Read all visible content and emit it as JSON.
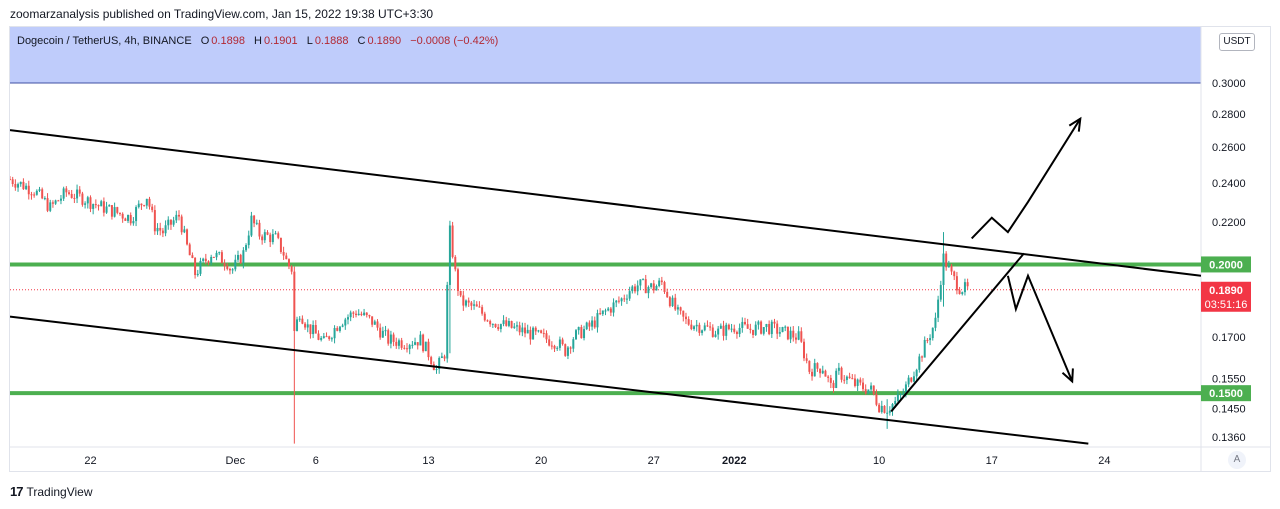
{
  "attribution": "zoomarzanalysis published on TradingView.com, Jan 15, 2022 19:38 UTC+3:30",
  "legend": {
    "symbol": "Dogecoin / TetherUS, 4h, BINANCE",
    "o_label": "O",
    "o_value": "0.1898",
    "h_label": "H",
    "h_value": "0.1901",
    "l_label": "L",
    "l_value": "0.1888",
    "c_label": "C",
    "c_value": "0.1890",
    "change": "−0.0008 (−0.42%)"
  },
  "unit_badge": "USDT",
  "auto_button": "A",
  "footer": {
    "logo": "17",
    "brand": "TradingView"
  },
  "colors": {
    "up": "#26a69a",
    "down": "#ef5350",
    "level": "#4caf50",
    "highlight": "#b8c7fb",
    "price": "#f23645"
  },
  "chart_data": {
    "type": "candlestick",
    "title": "",
    "xlabel": "",
    "ylabel": "",
    "ylim": [
      0.133,
      0.34
    ],
    "y_scale": "log",
    "x_range": [
      "2021-11-17T00:00",
      "2022-01-30T00:00"
    ],
    "y_ticks": [
      "0.1360",
      "0.1450",
      "0.1550",
      "0.1700",
      "0.1890",
      "0.2000",
      "0.2200",
      "0.2400",
      "0.2600",
      "0.2800",
      "0.3000"
    ],
    "x_ticks": [
      {
        "label": "22",
        "date": "2021-11-22"
      },
      {
        "label": "Dec",
        "date": "2021-12-01"
      },
      {
        "label": "6",
        "date": "2021-12-06"
      },
      {
        "label": "13",
        "date": "2021-12-13"
      },
      {
        "label": "20",
        "date": "2021-12-20"
      },
      {
        "label": "27",
        "date": "2021-12-27"
      },
      {
        "label": "2022",
        "date": "2022-01-01",
        "bold": true
      },
      {
        "label": "10",
        "date": "2022-01-10"
      },
      {
        "label": "17",
        "date": "2022-01-17"
      },
      {
        "label": "24",
        "date": "2022-01-24"
      }
    ],
    "price_path": [
      [
        "2021-11-17T00:00",
        0.242
      ],
      [
        "2021-11-18T12:00",
        0.236
      ],
      [
        "2021-11-19T12:00",
        0.227
      ],
      [
        "2021-11-20T12:00",
        0.235
      ],
      [
        "2021-11-21T12:00",
        0.232
      ],
      [
        "2021-11-22T12:00",
        0.228
      ],
      [
        "2021-11-23T12:00",
        0.225
      ],
      [
        "2021-11-24T12:00",
        0.222
      ],
      [
        "2021-11-25T12:00",
        0.233
      ],
      [
        "2021-11-26T00:00",
        0.218
      ],
      [
        "2021-11-26T12:00",
        0.215
      ],
      [
        "2021-11-27T12:00",
        0.223
      ],
      [
        "2021-11-28T00:00",
        0.208
      ],
      [
        "2021-11-28T12:00",
        0.196
      ],
      [
        "2021-11-29T12:00",
        0.205
      ],
      [
        "2021-11-30T12:00",
        0.201
      ],
      [
        "2021-11-30T18:00",
        0.197
      ],
      [
        "2021-12-01T12:00",
        0.205
      ],
      [
        "2021-12-02T00:00",
        0.221
      ],
      [
        "2021-12-02T12:00",
        0.214
      ],
      [
        "2021-12-03T12:00",
        0.212
      ],
      [
        "2021-12-04T00:00",
        0.205
      ],
      [
        "2021-12-04T06:00",
        0.2
      ],
      [
        "2021-12-04T12:00",
        0.198
      ],
      [
        "2021-12-04T16:00",
        0.172
      ],
      [
        "2021-12-05T00:00",
        0.18
      ],
      [
        "2021-12-05T12:00",
        0.174
      ],
      [
        "2021-12-06T12:00",
        0.168
      ],
      [
        "2021-12-07T12:00",
        0.176
      ],
      [
        "2021-12-08T12:00",
        0.18
      ],
      [
        "2021-12-09T12:00",
        0.176
      ],
      [
        "2021-12-10T12:00",
        0.169
      ],
      [
        "2021-12-11T12:00",
        0.168
      ],
      [
        "2021-12-12T12:00",
        0.169
      ],
      [
        "2021-12-13T00:00",
        0.164
      ],
      [
        "2021-12-13T12:00",
        0.158
      ],
      [
        "2021-12-14T00:00",
        0.164
      ],
      [
        "2021-12-14T08:00",
        0.215
      ],
      [
        "2021-12-14T16:00",
        0.196
      ],
      [
        "2021-12-15T00:00",
        0.184
      ],
      [
        "2021-12-16T00:00",
        0.181
      ],
      [
        "2021-12-17T00:00",
        0.176
      ],
      [
        "2021-12-18T00:00",
        0.174
      ],
      [
        "2021-12-19T00:00",
        0.172
      ],
      [
        "2021-12-20T00:00",
        0.17
      ],
      [
        "2021-12-21T00:00",
        0.168
      ],
      [
        "2021-12-21T12:00",
        0.165
      ],
      [
        "2021-12-22T00:00",
        0.17
      ],
      [
        "2021-12-23T00:00",
        0.174
      ],
      [
        "2021-12-24T00:00",
        0.18
      ],
      [
        "2021-12-25T00:00",
        0.185
      ],
      [
        "2021-12-25T12:00",
        0.189
      ],
      [
        "2021-12-26T00:00",
        0.191
      ],
      [
        "2021-12-27T00:00",
        0.19
      ],
      [
        "2021-12-27T12:00",
        0.192
      ],
      [
        "2021-12-28T00:00",
        0.185
      ],
      [
        "2021-12-28T12:00",
        0.179
      ],
      [
        "2021-12-29T00:00",
        0.176
      ],
      [
        "2021-12-30T00:00",
        0.174
      ],
      [
        "2021-12-31T00:00",
        0.172
      ],
      [
        "2022-01-01T00:00",
        0.174
      ],
      [
        "2022-01-02T00:00",
        0.173
      ],
      [
        "2022-01-03T00:00",
        0.174
      ],
      [
        "2022-01-04T00:00",
        0.172
      ],
      [
        "2022-01-05T00:00",
        0.17
      ],
      [
        "2022-01-05T16:00",
        0.158
      ],
      [
        "2022-01-06T12:00",
        0.159
      ],
      [
        "2022-01-07T00:00",
        0.152
      ],
      [
        "2022-01-07T12:00",
        0.157
      ],
      [
        "2022-01-08T12:00",
        0.153
      ],
      [
        "2022-01-09T12:00",
        0.151
      ],
      [
        "2022-01-10T00:00",
        0.146
      ],
      [
        "2022-01-10T12:00",
        0.145
      ],
      [
        "2022-01-11T00:00",
        0.147
      ],
      [
        "2022-01-11T12:00",
        0.15
      ],
      [
        "2022-01-12T00:00",
        0.156
      ],
      [
        "2022-01-12T12:00",
        0.162
      ],
      [
        "2022-01-13T00:00",
        0.169
      ],
      [
        "2022-01-13T12:00",
        0.176
      ],
      [
        "2022-01-14T00:00",
        0.203
      ],
      [
        "2022-01-14T12:00",
        0.195
      ],
      [
        "2022-01-15T00:00",
        0.19
      ],
      [
        "2022-01-15T12:00",
        0.189
      ]
    ],
    "spikes": [
      {
        "time": "2021-12-04T16:00",
        "low": 0.134,
        "high": 0.199
      },
      {
        "time": "2021-12-14T08:00",
        "low": 0.164,
        "high": 0.22
      },
      {
        "time": "2022-01-10T12:00",
        "low": 0.1385,
        "high": 0.148
      },
      {
        "time": "2022-01-14T00:00",
        "low": 0.182,
        "high": 0.215
      }
    ],
    "levels": [
      {
        "price": 0.2,
        "label": "0.2000"
      },
      {
        "price": 0.15,
        "label": "0.1500"
      }
    ],
    "last_price": {
      "price": 0.189,
      "label": "0.1890",
      "countdown": "03:51:16"
    },
    "highlight_band": [
      0.3,
      0.34
    ],
    "trendlines": [
      {
        "from": [
          "2021-11-17T00:00",
          0.27
        ],
        "to": [
          "2022-01-30T00:00",
          0.195
        ]
      },
      {
        "from": [
          "2021-11-17T00:00",
          0.178
        ],
        "to": [
          "2022-01-23T00:00",
          0.134
        ]
      },
      {
        "from": [
          "2022-01-10T18:00",
          0.144
        ],
        "to": [
          "2022-01-19T00:00",
          0.205
        ]
      }
    ],
    "projection_bull": [
      [
        "2022-01-15T18:00",
        0.212
      ],
      [
        "2022-01-17T00:00",
        0.222
      ],
      [
        "2022-01-18T00:00",
        0.215
      ],
      [
        "2022-01-19T06:00",
        0.23
      ],
      [
        "2022-01-22T12:00",
        0.277
      ]
    ],
    "projection_bear": [
      [
        "2022-01-18T00:00",
        0.195
      ],
      [
        "2022-01-18T12:00",
        0.181
      ],
      [
        "2022-01-19T06:00",
        0.195
      ],
      [
        "2022-01-22T00:00",
        0.154
      ]
    ]
  }
}
